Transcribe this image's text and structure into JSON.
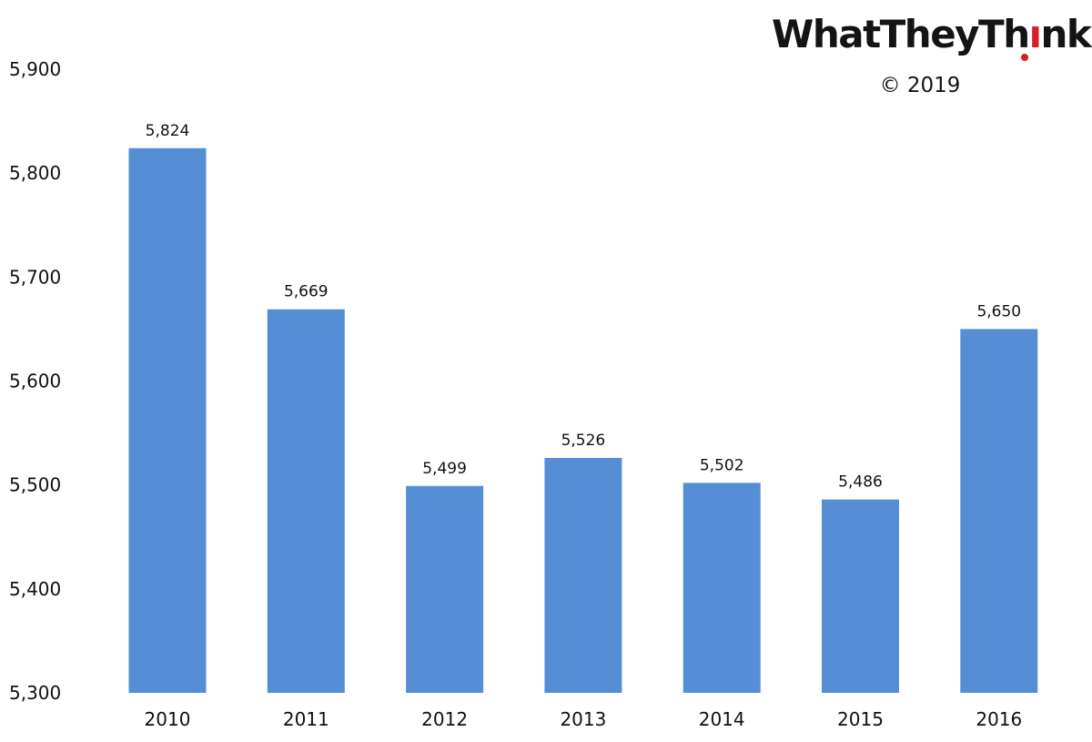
{
  "brand": {
    "name_before": "WhatTheyTh",
    "name_after": "nk",
    "copyright": "© 2019",
    "accent_color": "#d71f26"
  },
  "chart_data": {
    "type": "bar",
    "categories": [
      "2010",
      "2011",
      "2012",
      "2013",
      "2014",
      "2015",
      "2016"
    ],
    "values": [
      5824,
      5669,
      5499,
      5526,
      5502,
      5486,
      5650
    ],
    "data_labels": [
      "5,824",
      "5,669",
      "5,499",
      "5,526",
      "5,502",
      "5,486",
      "5,650"
    ],
    "ylim": [
      5300,
      5900
    ],
    "yticks": [
      5300,
      5400,
      5500,
      5600,
      5700,
      5800,
      5900
    ],
    "ytick_labels": [
      "5,300",
      "5,400",
      "5,500",
      "5,600",
      "5,700",
      "5,800",
      "5,900"
    ],
    "bar_color": "#558ed5",
    "grid": false,
    "legend": "none"
  }
}
